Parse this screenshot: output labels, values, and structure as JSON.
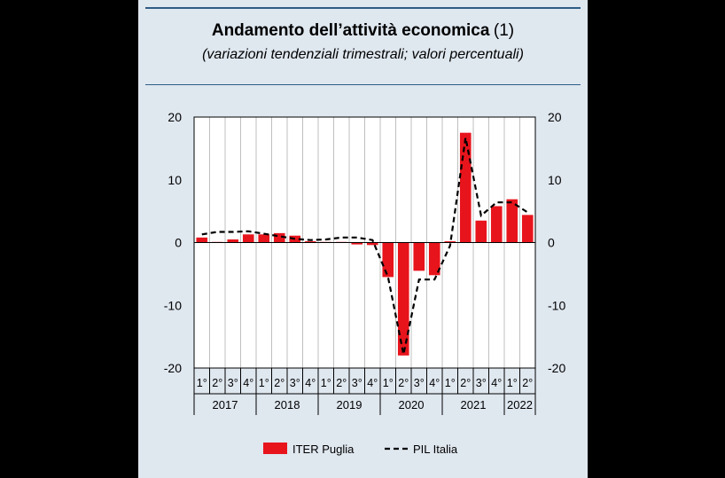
{
  "chart_data": {
    "type": "bar",
    "title": "Andamento dell’attività economica",
    "title_note": "(1)",
    "subtitle": "(variazioni tendenziali trimestrali; valori percentuali)",
    "quarters": [
      "1°",
      "2°",
      "3°",
      "4°",
      "1°",
      "2°",
      "3°",
      "4°",
      "1°",
      "2°",
      "3°",
      "4°",
      "1°",
      "2°",
      "3°",
      "4°",
      "1°",
      "2°",
      "3°",
      "4°",
      "1°",
      "2°"
    ],
    "years": [
      {
        "label": "2017",
        "count": 4
      },
      {
        "label": "2018",
        "count": 4
      },
      {
        "label": "2019",
        "count": 4
      },
      {
        "label": "2020",
        "count": 4
      },
      {
        "label": "2021",
        "count": 4
      },
      {
        "label": "2022",
        "count": 2
      }
    ],
    "ylim": [
      -20,
      20
    ],
    "yticks": [
      20,
      10,
      0,
      -10,
      -20
    ],
    "y_axis_both_sides": true,
    "grid": "vertical",
    "legend_position": "bottom",
    "series": [
      {
        "name": "ITER Puglia",
        "kind": "bar",
        "color": "#e8141c",
        "values": [
          0.8,
          0.1,
          0.5,
          1.3,
          1.3,
          1.5,
          1.1,
          0.2,
          0.1,
          0.1,
          -0.3,
          -0.4,
          -5.5,
          -18.0,
          -4.5,
          -5.2,
          0.2,
          17.5,
          3.5,
          5.8,
          6.9,
          4.4
        ]
      },
      {
        "name": "PIL Italia",
        "kind": "line",
        "style": "dashed",
        "color": "#000000",
        "values": [
          1.3,
          1.7,
          1.7,
          1.8,
          1.4,
          1.0,
          0.6,
          0.4,
          0.5,
          0.8,
          0.8,
          0.4,
          -5.5,
          -17.8,
          -5.9,
          -5.9,
          -0.5,
          16.7,
          4.3,
          6.4,
          6.4,
          4.8
        ]
      }
    ]
  }
}
